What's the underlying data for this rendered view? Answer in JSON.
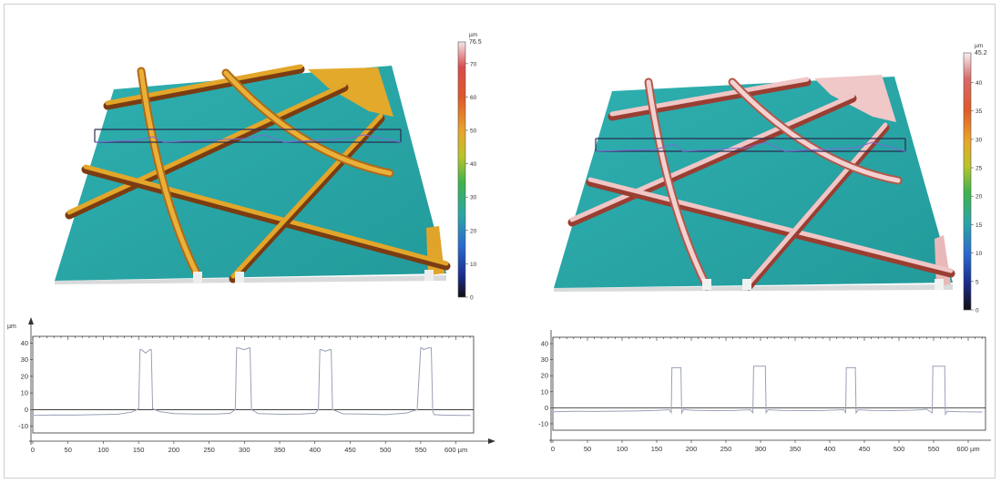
{
  "colors": {
    "substrate": "#2aa6a7",
    "substrate_dark": "#1d8081",
    "wall_left": "#e2a62a",
    "wall_left_dark": "#8a4a14",
    "wall_right": "#f0c6c6",
    "wall_right_dark": "#a14a3c",
    "trace": "#9aa0b8",
    "cursor": "#2d2d50"
  },
  "colorbars": [
    {
      "unit": "µm",
      "max_label": "76.5",
      "ticks": [
        "70",
        "60",
        "50",
        "40",
        "30",
        "20",
        "10",
        "0"
      ],
      "tick_values": [
        70,
        60,
        50,
        40,
        30,
        20,
        10,
        0
      ],
      "max_value": 76.5
    },
    {
      "unit": "µm",
      "max_label": "45.2",
      "ticks": [
        "40",
        "35",
        "30",
        "25",
        "20",
        "15",
        "10",
        "5",
        "0"
      ],
      "tick_values": [
        40,
        35,
        30,
        25,
        20,
        15,
        10,
        5,
        0
      ],
      "max_value": 45.2
    }
  ],
  "chart_data": [
    {
      "type": "line",
      "title": "",
      "ylabel": "µm",
      "xlabel": "",
      "x_ticks": [
        "0",
        "50",
        "100",
        "150",
        "200",
        "250",
        "300",
        "350",
        "400",
        "450",
        "500",
        "550",
        "600 µm"
      ],
      "x_tick_values": [
        0,
        50,
        100,
        150,
        200,
        250,
        300,
        350,
        400,
        450,
        500,
        550,
        600
      ],
      "y_ticks": [
        "40",
        "30",
        "20",
        "10",
        "0",
        "-10"
      ],
      "y_tick_values": [
        40,
        30,
        20,
        10,
        0,
        -10
      ],
      "xlim": [
        0,
        625
      ],
      "ylim": [
        -14,
        44
      ],
      "grid": false,
      "series": [
        {
          "x": [
            0,
            30,
            60,
            90,
            120,
            140,
            150,
            152,
            154,
            160,
            166,
            168,
            170,
            180,
            200,
            230,
            260,
            280,
            287,
            289,
            291,
            300,
            306,
            308,
            310,
            320,
            350,
            380,
            400,
            405,
            407,
            409,
            415,
            421,
            423,
            425,
            440,
            470,
            500,
            530,
            545,
            550,
            552,
            554,
            560,
            565,
            567,
            569,
            580,
            600,
            620
          ],
          "y": [
            -3.5,
            -3.2,
            -3.3,
            -3.0,
            -2.8,
            -1.5,
            0.5,
            36,
            36,
            34,
            36,
            36,
            0.5,
            -1.2,
            -2.4,
            -2.7,
            -2.6,
            -2.2,
            0,
            37,
            37,
            36,
            37,
            37,
            0,
            -2.4,
            -2.8,
            -2.6,
            -2.2,
            0,
            36,
            36,
            35,
            36,
            36,
            0,
            -2.5,
            -2.7,
            -3.0,
            -2.0,
            0,
            37,
            37,
            36,
            37,
            37,
            -1,
            -3.0,
            -3.3,
            -3.4,
            -3.5
          ]
        }
      ]
    },
    {
      "type": "line",
      "title": "",
      "ylabel": "",
      "xlabel": "",
      "x_ticks": [
        "0",
        "50",
        "100",
        "150",
        "200",
        "250",
        "300",
        "350",
        "400",
        "450",
        "500",
        "550",
        "600 µm"
      ],
      "x_tick_values": [
        0,
        50,
        100,
        150,
        200,
        250,
        300,
        350,
        400,
        450,
        500,
        550,
        600
      ],
      "y_ticks": [
        "40",
        "30",
        "20",
        "10",
        "0",
        "-10"
      ],
      "y_tick_values": [
        40,
        30,
        20,
        10,
        0,
        -10
      ],
      "xlim": [
        0,
        625
      ],
      "ylim": [
        -14,
        44
      ],
      "grid": false,
      "series": [
        {
          "x": [
            0,
            30,
            60,
            90,
            120,
            150,
            168,
            171,
            172,
            185,
            186,
            189,
            200,
            230,
            260,
            285,
            289,
            290,
            307,
            308,
            311,
            330,
            360,
            390,
            410,
            420,
            423,
            424,
            437,
            438,
            441,
            460,
            490,
            520,
            540,
            548,
            549,
            566,
            567,
            570,
            590,
            620
          ],
          "y": [
            -2.5,
            -2.2,
            -2.3,
            -2.1,
            -2.0,
            -1.6,
            -1.2,
            -3.0,
            25,
            25,
            -3.2,
            -1.0,
            -1.5,
            -1.8,
            -1.7,
            -1.2,
            -3.0,
            26,
            26,
            -3.0,
            -1.2,
            -1.6,
            -1.8,
            -1.7,
            -1.4,
            -1.2,
            -3.0,
            25,
            25,
            -3.2,
            -1.2,
            -1.6,
            -1.8,
            -1.5,
            -1.0,
            -3.2,
            26,
            26,
            -4.0,
            -2.2,
            -2.5,
            -2.6
          ]
        }
      ]
    }
  ]
}
